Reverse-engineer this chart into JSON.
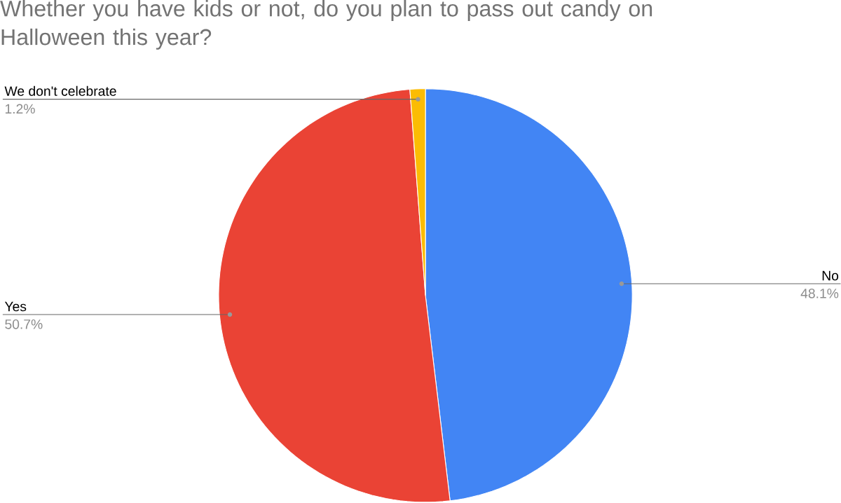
{
  "chart_data": {
    "type": "pie",
    "title": "Whether you have kids or not, do you plan to pass out candy on Halloween this year?",
    "categories": [
      "No",
      "Yes",
      "We don't celebrate"
    ],
    "values": [
      48.1,
      50.7,
      1.2
    ],
    "colors": [
      "#4285f4",
      "#ea4335",
      "#fbbc04"
    ],
    "value_labels": [
      "48.1%",
      "50.7%",
      "1.2%"
    ]
  }
}
